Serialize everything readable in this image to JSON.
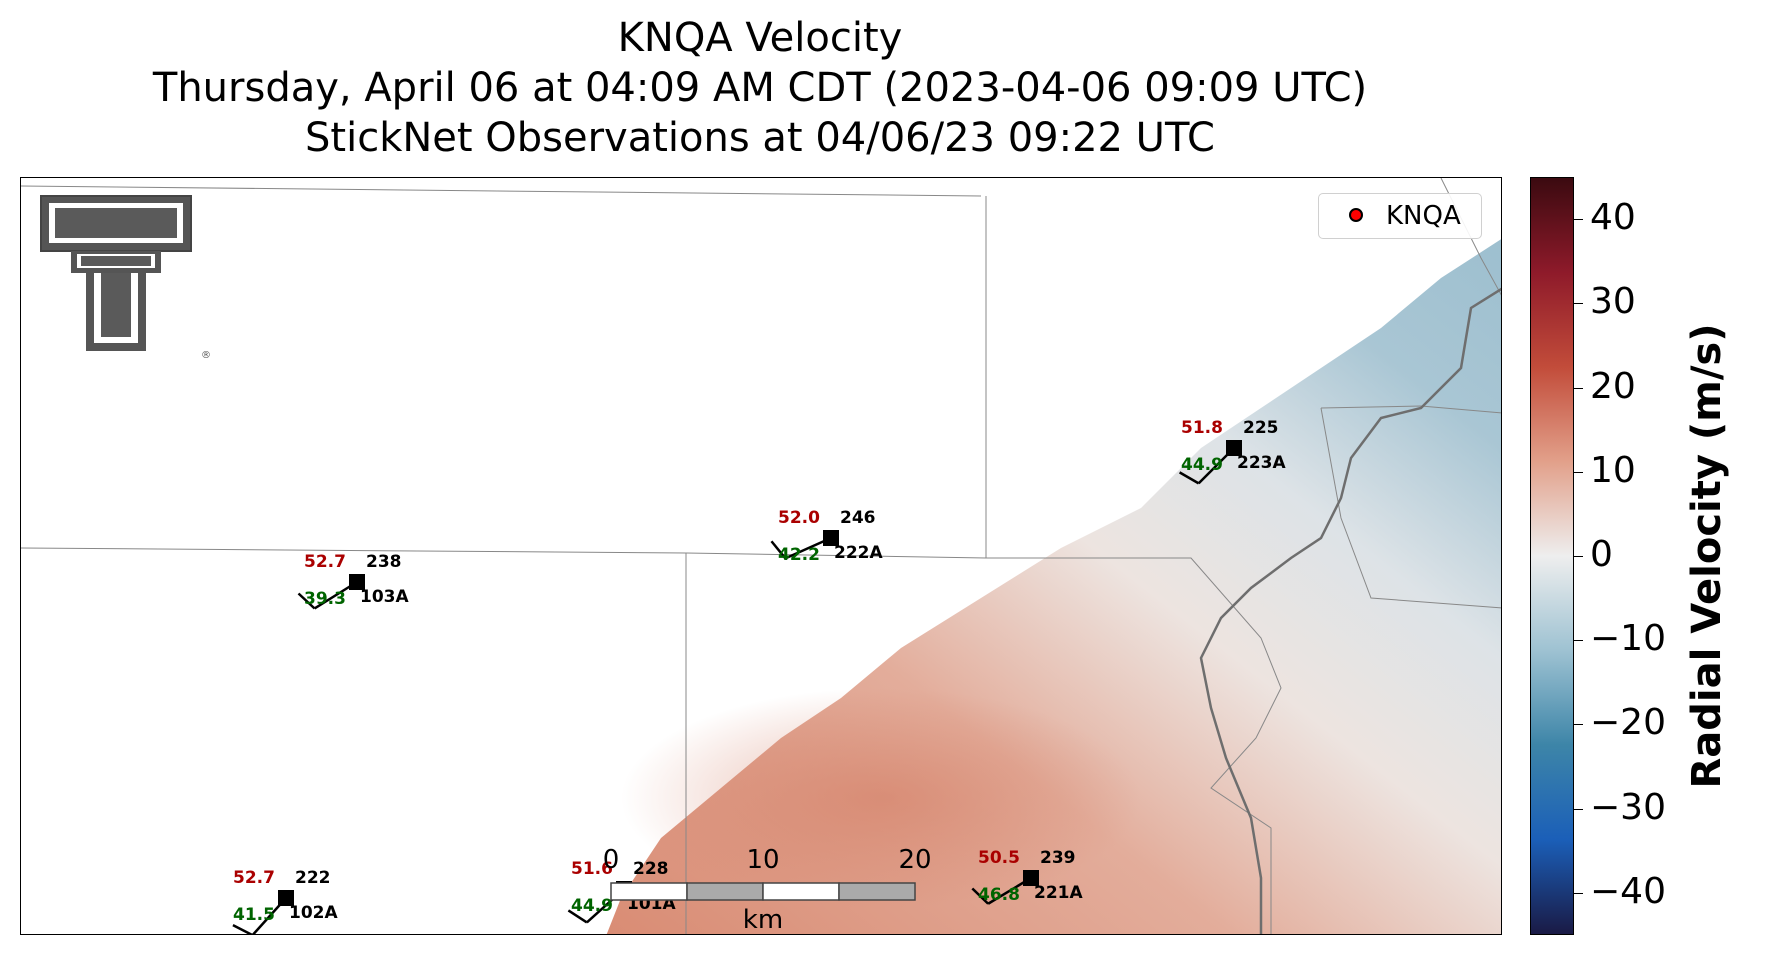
{
  "title": {
    "line1": "KNQA Velocity",
    "line2": "Thursday, April 06 at 04:09 AM CDT (2023-04-06 09:09 UTC)",
    "line3": "StickNet Observations at 04/06/23 09:22 UTC"
  },
  "legend": {
    "label": "KNQA",
    "marker_color": "#ff0000"
  },
  "colorbar": {
    "title": "Radial Velocity (m/s)",
    "ticks": [
      "40",
      "30",
      "20",
      "10",
      "0",
      "−10",
      "−20",
      "−30",
      "−40"
    ],
    "range": [
      -45,
      45
    ],
    "colors": [
      "#3b0a10",
      "#8e1a2a",
      "#c24c3a",
      "#e2a08a",
      "#eeeeee",
      "#9ec2d2",
      "#3d85a8",
      "#1b5fb8",
      "#1a1a45"
    ]
  },
  "scale_bar": {
    "labels": [
      "0",
      "10",
      "20"
    ],
    "unit": "km"
  },
  "logo": {
    "name": "Texas Tech double-T logo",
    "mark": "®"
  },
  "stations": [
    {
      "id": "103A",
      "temp": "52.7",
      "dir": "238",
      "dewpoint": "39.3"
    },
    {
      "id": "222A",
      "temp": "52.0",
      "dir": "246",
      "dewpoint": "42.2"
    },
    {
      "id": "223A",
      "temp": "51.8",
      "dir": "225",
      "dewpoint": "44.9"
    },
    {
      "id": "102A",
      "temp": "52.7",
      "dir": "222",
      "dewpoint": "41.5"
    },
    {
      "id": "101A",
      "temp": "51.6",
      "dir": "228",
      "dewpoint": "44.9"
    },
    {
      "id": "221A",
      "temp": "50.5",
      "dir": "239",
      "dewpoint": "46.8"
    }
  ],
  "colors": {
    "temp": "#aa0000",
    "dewpoint": "#006400",
    "station": "#000000"
  }
}
